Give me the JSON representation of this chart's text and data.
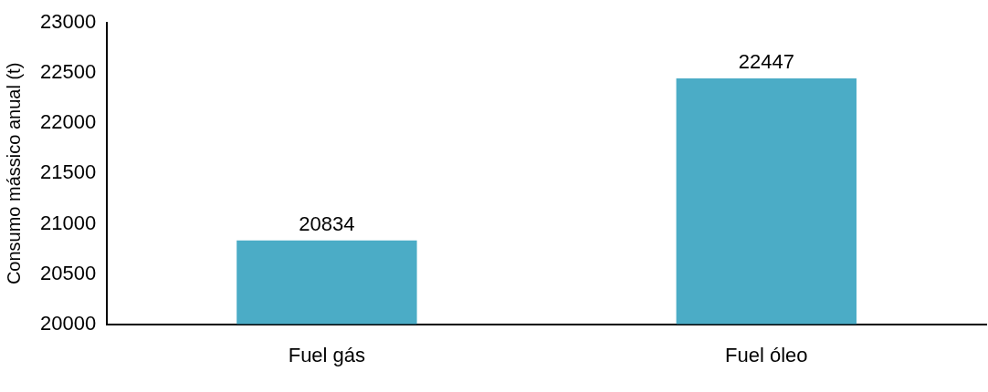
{
  "chart_data": {
    "type": "bar",
    "ylabel": "Consumo mássico anual (t)",
    "categories": [
      "Fuel gás",
      "Fuel óleo"
    ],
    "values": [
      20834,
      22447
    ],
    "color": "#4bacc6",
    "ylim": [
      20000,
      23000
    ],
    "yticks": [
      20000,
      20500,
      21000,
      21500,
      22000,
      22500,
      23000
    ],
    "grid": false,
    "legend": false,
    "data_labels": true
  }
}
